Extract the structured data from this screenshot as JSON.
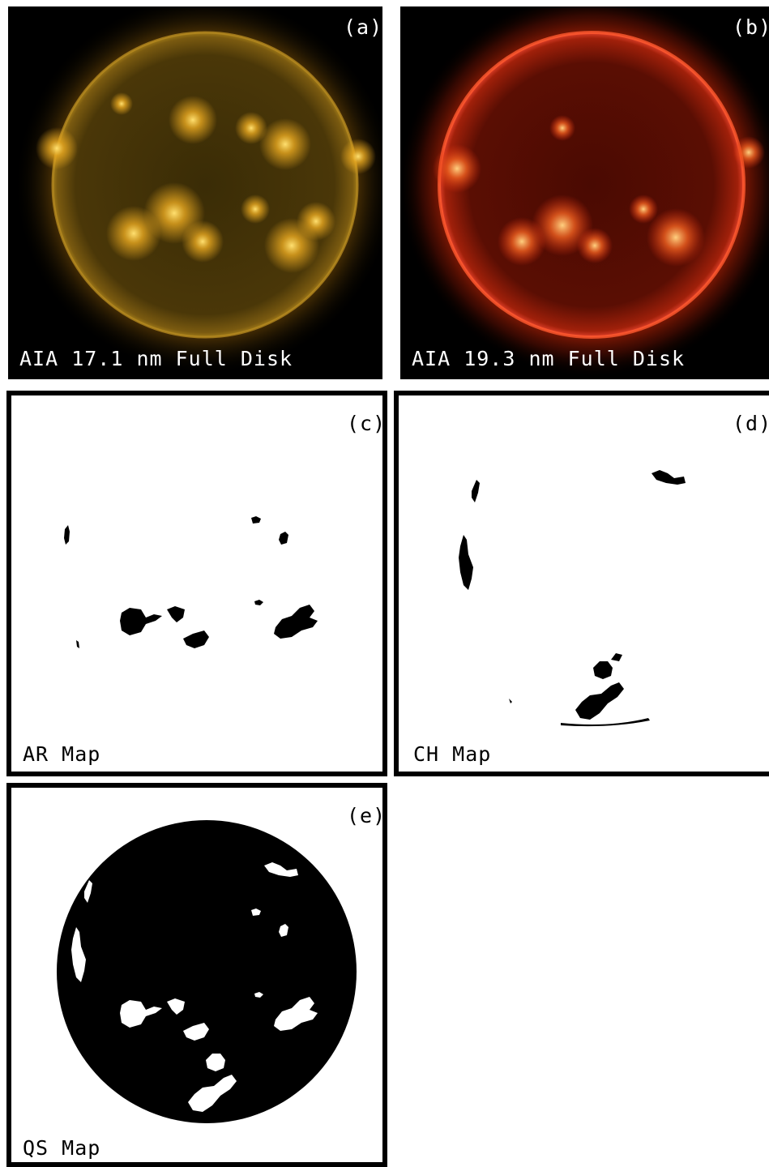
{
  "panels": {
    "a": {
      "tag": "(a)",
      "caption": "AIA 17.1 nm Full Disk",
      "color": "#d9a01a"
    },
    "b": {
      "tag": "(b)",
      "caption": "AIA 19.3 nm Full Disk",
      "color": "#e0260a"
    },
    "c": {
      "tag": "(c)",
      "caption": "AR Map"
    },
    "d": {
      "tag": "(d)",
      "caption": "CH Map"
    },
    "e": {
      "tag": "(e)",
      "caption": "QS Map"
    }
  }
}
